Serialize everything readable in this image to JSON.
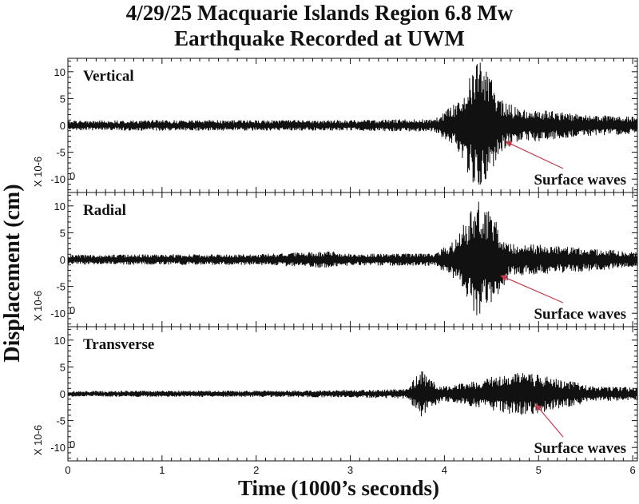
{
  "title_line1": "4/29/25 Macquarie Islands Region 6.8 Mw",
  "title_line2": "Earthquake Recorded at UWM",
  "chart_data": {
    "type": "line",
    "ylabel": "Displacement (cm)",
    "xlabel": "Time (1000’s seconds)",
    "xlim": [
      0,
      6.05
    ],
    "x_ticks": [
      "0",
      "1",
      "2",
      "3",
      "4",
      "5",
      "6"
    ],
    "panels": [
      {
        "name": "Vertical",
        "ylim": [
          -12.5,
          12.5
        ],
        "y_ticks": [
          "10",
          "5",
          "0",
          "-5",
          "-10"
        ],
        "scale_label": "X 10-6",
        "scale_zero": "0",
        "annotation": "Surface waves",
        "arrow_points_to_time": 4.65,
        "arrow_points_to_value": -3.0,
        "envelope": {
          "time": [
            0.0,
            1.0,
            2.0,
            3.0,
            3.9,
            4.1,
            4.25,
            4.35,
            4.45,
            4.5,
            4.6,
            4.8,
            5.0,
            5.5,
            6.05
          ],
          "amplitude": [
            0.9,
            1.0,
            1.0,
            1.0,
            1.2,
            4.0,
            9.0,
            12.5,
            11.0,
            8.5,
            5.0,
            3.0,
            3.0,
            2.0,
            1.6
          ]
        }
      },
      {
        "name": "Radial",
        "ylim": [
          -12.5,
          12.5
        ],
        "y_ticks": [
          "10",
          "5",
          "0",
          "-5",
          "-10"
        ],
        "scale_label": "X 10-6",
        "scale_zero": "0",
        "annotation": "Surface waves",
        "arrow_points_to_time": 4.6,
        "arrow_points_to_value": -3.0,
        "envelope": {
          "time": [
            0.0,
            1.0,
            2.0,
            2.8,
            3.0,
            3.9,
            4.1,
            4.25,
            4.35,
            4.45,
            4.55,
            4.7,
            5.0,
            5.5,
            6.05
          ],
          "amplitude": [
            0.9,
            1.0,
            1.0,
            1.6,
            1.1,
            1.2,
            3.5,
            8.0,
            11.5,
            10.0,
            7.0,
            3.0,
            2.8,
            2.2,
            1.4
          ]
        }
      },
      {
        "name": "Transverse",
        "ylim": [
          -12.5,
          12.5
        ],
        "y_ticks": [
          "10",
          "5",
          "0",
          "-5",
          "-10"
        ],
        "scale_label": "X 10-6",
        "scale_zero": "0",
        "annotation": "Surface waves",
        "arrow_points_to_time": 4.97,
        "arrow_points_to_value": -2.0,
        "envelope": {
          "time": [
            0.0,
            1.0,
            2.0,
            3.0,
            3.6,
            3.75,
            3.85,
            4.0,
            4.2,
            4.4,
            4.8,
            5.0,
            5.3,
            5.6,
            6.05
          ],
          "amplitude": [
            0.5,
            0.6,
            0.6,
            0.7,
            0.9,
            4.5,
            2.5,
            1.5,
            2.0,
            2.8,
            4.2,
            3.6,
            2.5,
            1.4,
            1.2
          ]
        }
      }
    ],
    "colors": {
      "trace": "#111111",
      "arrow": "#c23b4a",
      "axis": "#111111"
    }
  }
}
